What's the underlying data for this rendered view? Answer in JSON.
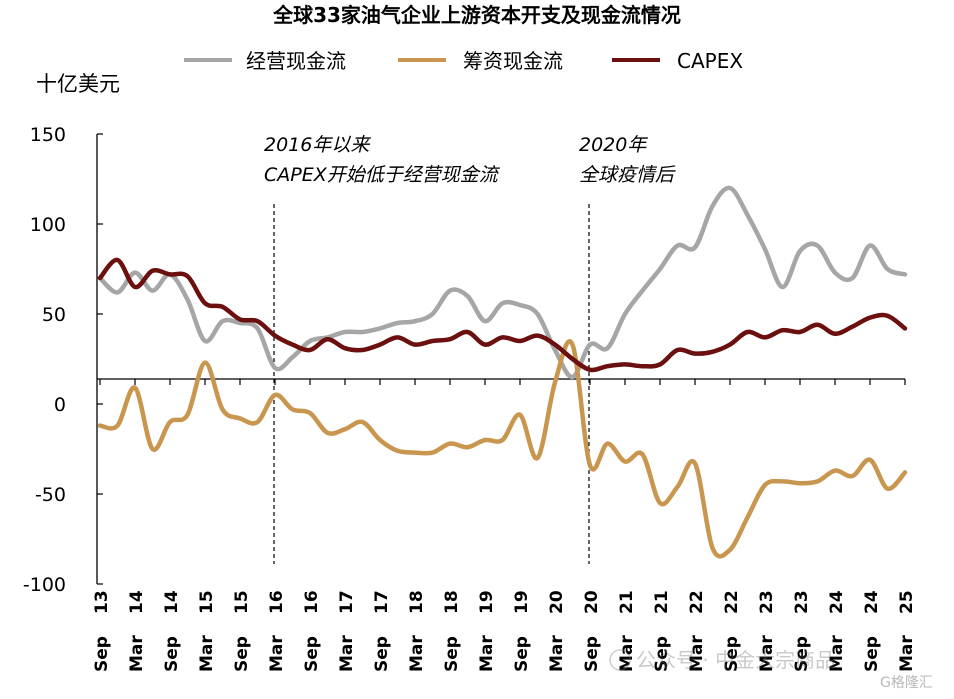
{
  "chart_data": {
    "type": "line",
    "title": "全球33家油气企业上游资本开支及现金流情况",
    "ylabel": "十亿美元",
    "xlabel": "",
    "ylim": [
      -100,
      150
    ],
    "yticks": [
      150,
      100,
      50,
      0,
      -50,
      -100
    ],
    "xticks": [
      "Sep 13",
      "Mar 14",
      "Sep 14",
      "Mar 15",
      "Sep 15",
      "Mar 16",
      "Sep 16",
      "Mar 17",
      "Sep 17",
      "Mar 18",
      "Sep 18",
      "Mar 19",
      "Sep 19",
      "Mar 20",
      "Sep 20",
      "Mar 21",
      "Sep 21",
      "Mar 22",
      "Sep 22",
      "Mar 23",
      "Sep 23",
      "Mar 24",
      "Sep 24",
      "Mar 25"
    ],
    "grid": false,
    "legend_position": "top",
    "annotations": [
      {
        "lines": [
          "2016年以来",
          "CAPEX开始低于经营现金流"
        ],
        "x": "Mar 16"
      },
      {
        "lines": [
          "2020年",
          "全球疫情后"
        ],
        "x": "Sep 20"
      }
    ],
    "series": [
      {
        "name": "经营现金流",
        "color": "#a6a6a6",
        "points": [
          [
            0,
            70
          ],
          [
            0.5,
            62
          ],
          [
            1,
            73
          ],
          [
            1.5,
            63
          ],
          [
            2,
            72
          ],
          [
            2.5,
            58
          ],
          [
            3,
            35
          ],
          [
            3.5,
            46
          ],
          [
            4,
            45
          ],
          [
            4.5,
            42
          ],
          [
            5,
            20
          ],
          [
            5.5,
            26
          ],
          [
            6,
            35
          ],
          [
            6.5,
            37
          ],
          [
            7,
            40
          ],
          [
            7.5,
            40
          ],
          [
            8,
            42
          ],
          [
            8.5,
            45
          ],
          [
            9,
            46
          ],
          [
            9.5,
            50
          ],
          [
            10,
            63
          ],
          [
            10.5,
            60
          ],
          [
            11,
            46
          ],
          [
            11.5,
            56
          ],
          [
            12,
            55
          ],
          [
            12.5,
            50
          ],
          [
            13,
            30
          ],
          [
            13.5,
            15
          ],
          [
            14,
            33
          ],
          [
            14.5,
            31
          ],
          [
            15,
            50
          ],
          [
            15.5,
            63
          ],
          [
            16,
            75
          ],
          [
            16.5,
            88
          ],
          [
            17,
            87
          ],
          [
            17.5,
            110
          ],
          [
            18,
            120
          ],
          [
            18.5,
            105
          ],
          [
            19,
            86
          ],
          [
            19.5,
            65
          ],
          [
            20,
            85
          ],
          [
            20.5,
            88
          ],
          [
            21,
            73
          ],
          [
            21.5,
            70
          ],
          [
            22,
            88
          ],
          [
            22.5,
            75
          ],
          [
            23,
            72
          ]
        ]
      },
      {
        "name": "筹资现金流",
        "color": "#c8964e",
        "points": [
          [
            0,
            -12
          ],
          [
            0.5,
            -12
          ],
          [
            1,
            9
          ],
          [
            1.5,
            -25
          ],
          [
            2,
            -10
          ],
          [
            2.5,
            -6
          ],
          [
            3,
            23
          ],
          [
            3.5,
            -3
          ],
          [
            4,
            -8
          ],
          [
            4.5,
            -10
          ],
          [
            5,
            5
          ],
          [
            5.5,
            -3
          ],
          [
            6,
            -5
          ],
          [
            6.5,
            -16
          ],
          [
            7,
            -14
          ],
          [
            7.5,
            -10
          ],
          [
            8,
            -20
          ],
          [
            8.5,
            -26
          ],
          [
            9,
            -27
          ],
          [
            9.5,
            -27
          ],
          [
            10,
            -22
          ],
          [
            10.5,
            -24
          ],
          [
            11,
            -20
          ],
          [
            11.5,
            -20
          ],
          [
            12,
            -6
          ],
          [
            12.5,
            -30
          ],
          [
            13,
            12
          ],
          [
            13.5,
            33
          ],
          [
            14,
            -34
          ],
          [
            14.5,
            -22
          ],
          [
            15,
            -32
          ],
          [
            15.5,
            -28
          ],
          [
            16,
            -55
          ],
          [
            16.5,
            -46
          ],
          [
            17,
            -33
          ],
          [
            17.5,
            -80
          ],
          [
            18,
            -81
          ],
          [
            18.5,
            -63
          ],
          [
            19,
            -45
          ],
          [
            19.5,
            -43
          ],
          [
            20,
            -44
          ],
          [
            20.5,
            -43
          ],
          [
            21,
            -37
          ],
          [
            21.5,
            -40
          ],
          [
            22,
            -31
          ],
          [
            22.5,
            -47
          ],
          [
            23,
            -38
          ]
        ]
      },
      {
        "name": "CAPEX",
        "color": "#6b0f0f",
        "points": [
          [
            0,
            70
          ],
          [
            0.5,
            80
          ],
          [
            1,
            65
          ],
          [
            1.5,
            74
          ],
          [
            2,
            72
          ],
          [
            2.5,
            71
          ],
          [
            3,
            56
          ],
          [
            3.5,
            54
          ],
          [
            4,
            47
          ],
          [
            4.5,
            46
          ],
          [
            5,
            38
          ],
          [
            5.5,
            33
          ],
          [
            6,
            30
          ],
          [
            6.5,
            36
          ],
          [
            7,
            31
          ],
          [
            7.5,
            30
          ],
          [
            8,
            33
          ],
          [
            8.5,
            37
          ],
          [
            9,
            33
          ],
          [
            9.5,
            35
          ],
          [
            10,
            36
          ],
          [
            10.5,
            40
          ],
          [
            11,
            33
          ],
          [
            11.5,
            37
          ],
          [
            12,
            35
          ],
          [
            12.5,
            38
          ],
          [
            13,
            33
          ],
          [
            13.5,
            25
          ],
          [
            14,
            19
          ],
          [
            14.5,
            21
          ],
          [
            15,
            22
          ],
          [
            15.5,
            21
          ],
          [
            16,
            22
          ],
          [
            16.5,
            30
          ],
          [
            17,
            28
          ],
          [
            17.5,
            29
          ],
          [
            18,
            33
          ],
          [
            18.5,
            40
          ],
          [
            19,
            37
          ],
          [
            19.5,
            41
          ],
          [
            20,
            40
          ],
          [
            20.5,
            44
          ],
          [
            21,
            39
          ],
          [
            21.5,
            43
          ],
          [
            22,
            48
          ],
          [
            22.5,
            49
          ],
          [
            23,
            42
          ]
        ]
      }
    ]
  },
  "watermark": {
    "text": "公众号 · 中金大宗商品",
    "logo_text": "G格隆汇"
  }
}
